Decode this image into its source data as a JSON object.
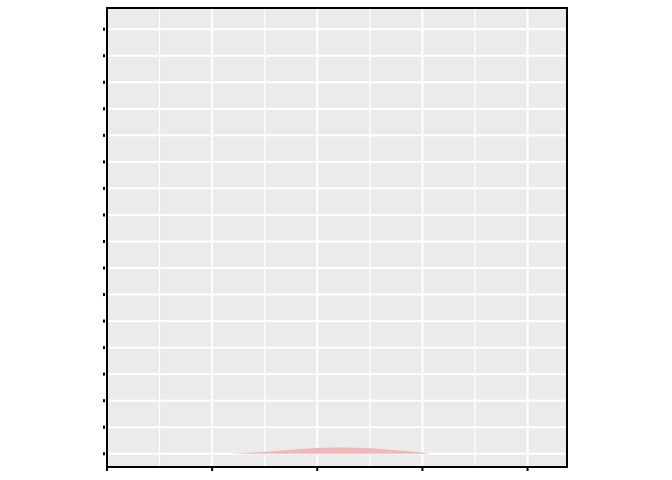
{
  "chart_data": {
    "type": "area",
    "title": "",
    "xlabel": "",
    "ylabel": "",
    "x_ticks": [
      "",
      "",
      "",
      "",
      ""
    ],
    "y_ticks": [
      "",
      "",
      "",
      "",
      "",
      "",
      "",
      "",
      "",
      "",
      "",
      "",
      "",
      "",
      "",
      "",
      ""
    ],
    "xlim": [
      0,
      8.75
    ],
    "ylim": [
      -0.5,
      16.8
    ],
    "grid": true,
    "legend": "none",
    "series": [
      {
        "fill_color": "#f4b6b6",
        "x": [
          2.33,
          3.0,
          3.5,
          4.0,
          4.5,
          5.0,
          5.5,
          6.0,
          6.15
        ],
        "y": [
          0.0,
          0.07,
          0.15,
          0.22,
          0.24,
          0.21,
          0.13,
          0.05,
          0.0
        ]
      }
    ],
    "colors": {
      "panel_background": "#ebebeb",
      "gridline": "#ffffff",
      "axis": "#000000"
    }
  }
}
